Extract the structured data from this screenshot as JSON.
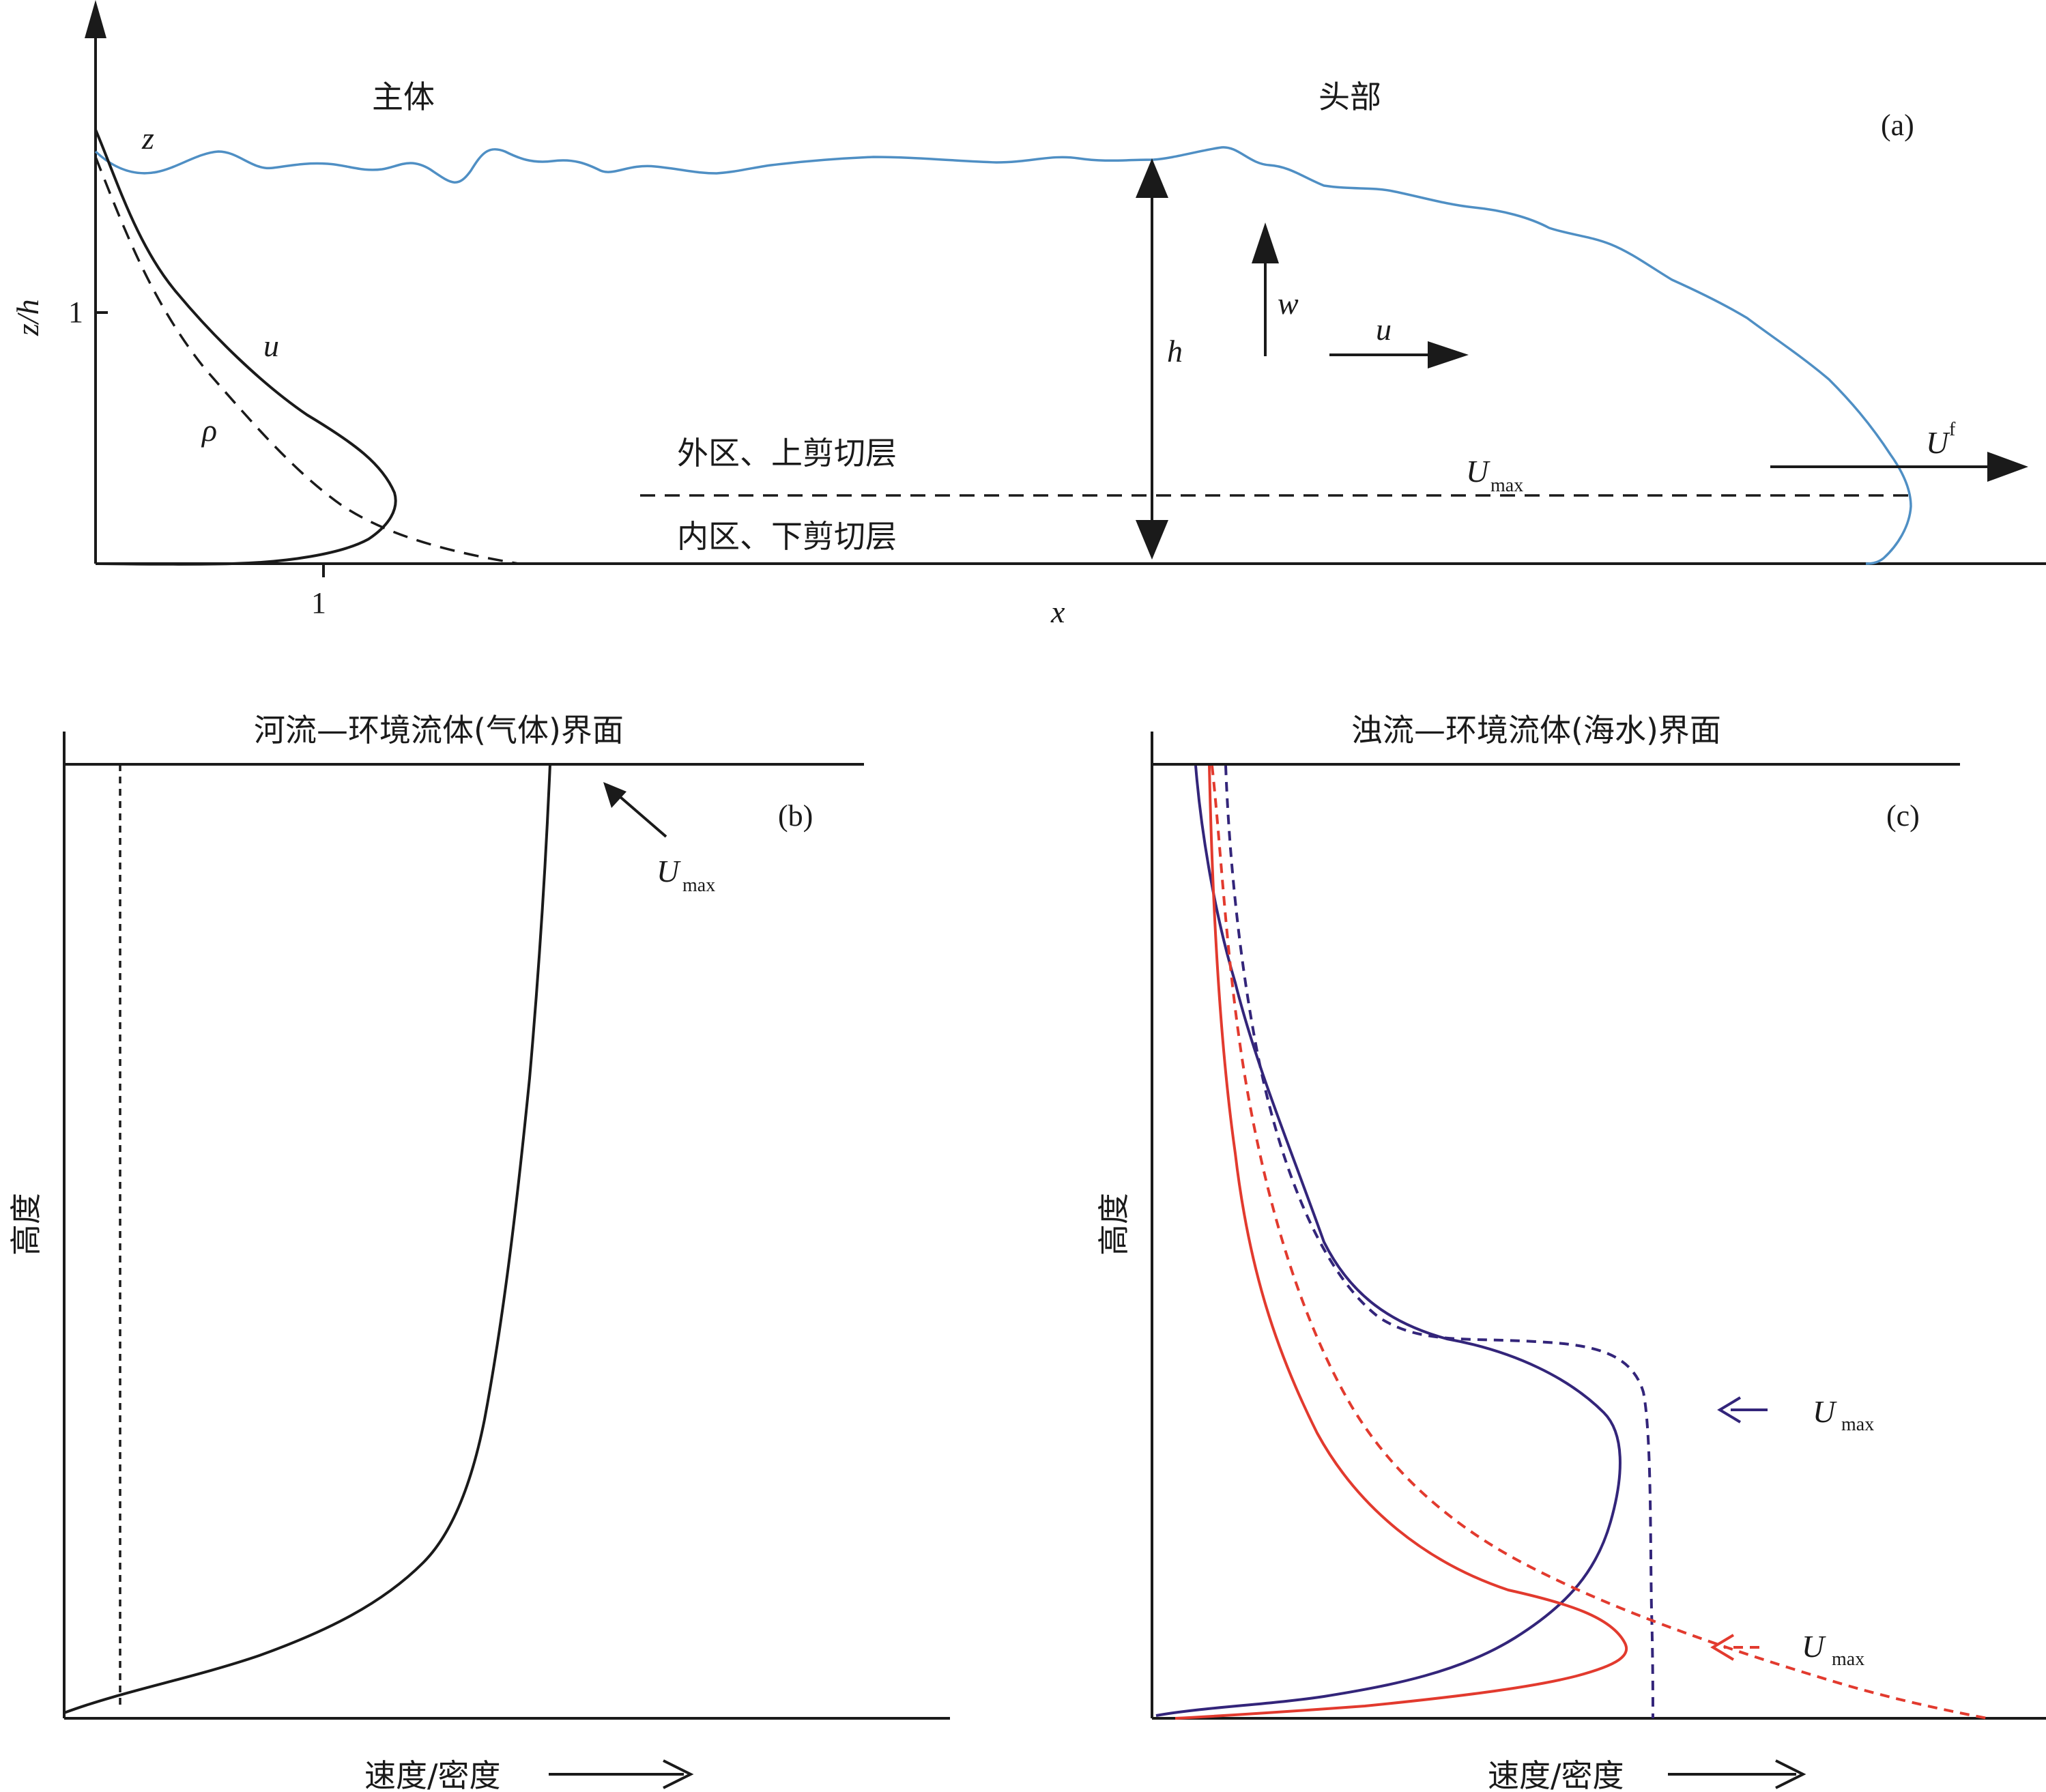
{
  "panel_a": {
    "label": "(a)",
    "body_label": "主体",
    "head_label": "头部",
    "z_axis_label": "z/h",
    "x_axis_label": "x",
    "tick_z_1": "1",
    "tick_x_1": "1",
    "profile_top_label": "z",
    "u_label": "u",
    "rho_label": "ρ",
    "h_label": "h",
    "w_label": "w",
    "u_arrow_label": "u",
    "outer_label": "外区、上剪切层",
    "inner_label": "内区、下剪切层",
    "umax_U": "U",
    "umax_sub": "max",
    "uf_U": "U",
    "uf_sup": "f"
  },
  "panel_b": {
    "label": "(b)",
    "title": "河流—环境流体(气体)界面",
    "y_axis_label": "高度",
    "x_axis_label": "速度/密度",
    "umax_U": "U",
    "umax_sub": "max"
  },
  "panel_c": {
    "label": "(c)",
    "title": "浊流—环境流体(海水)界面",
    "y_axis_label": "高度",
    "x_axis_label": "速度/密度",
    "umax_upper_U": "U",
    "umax_upper_sub": "max",
    "umax_lower_U": "U",
    "umax_lower_sub": "max"
  },
  "colors": {
    "interface": "#4f8fc4",
    "purple_profile": "#33257a",
    "red_profile": "#e23a2e"
  }
}
